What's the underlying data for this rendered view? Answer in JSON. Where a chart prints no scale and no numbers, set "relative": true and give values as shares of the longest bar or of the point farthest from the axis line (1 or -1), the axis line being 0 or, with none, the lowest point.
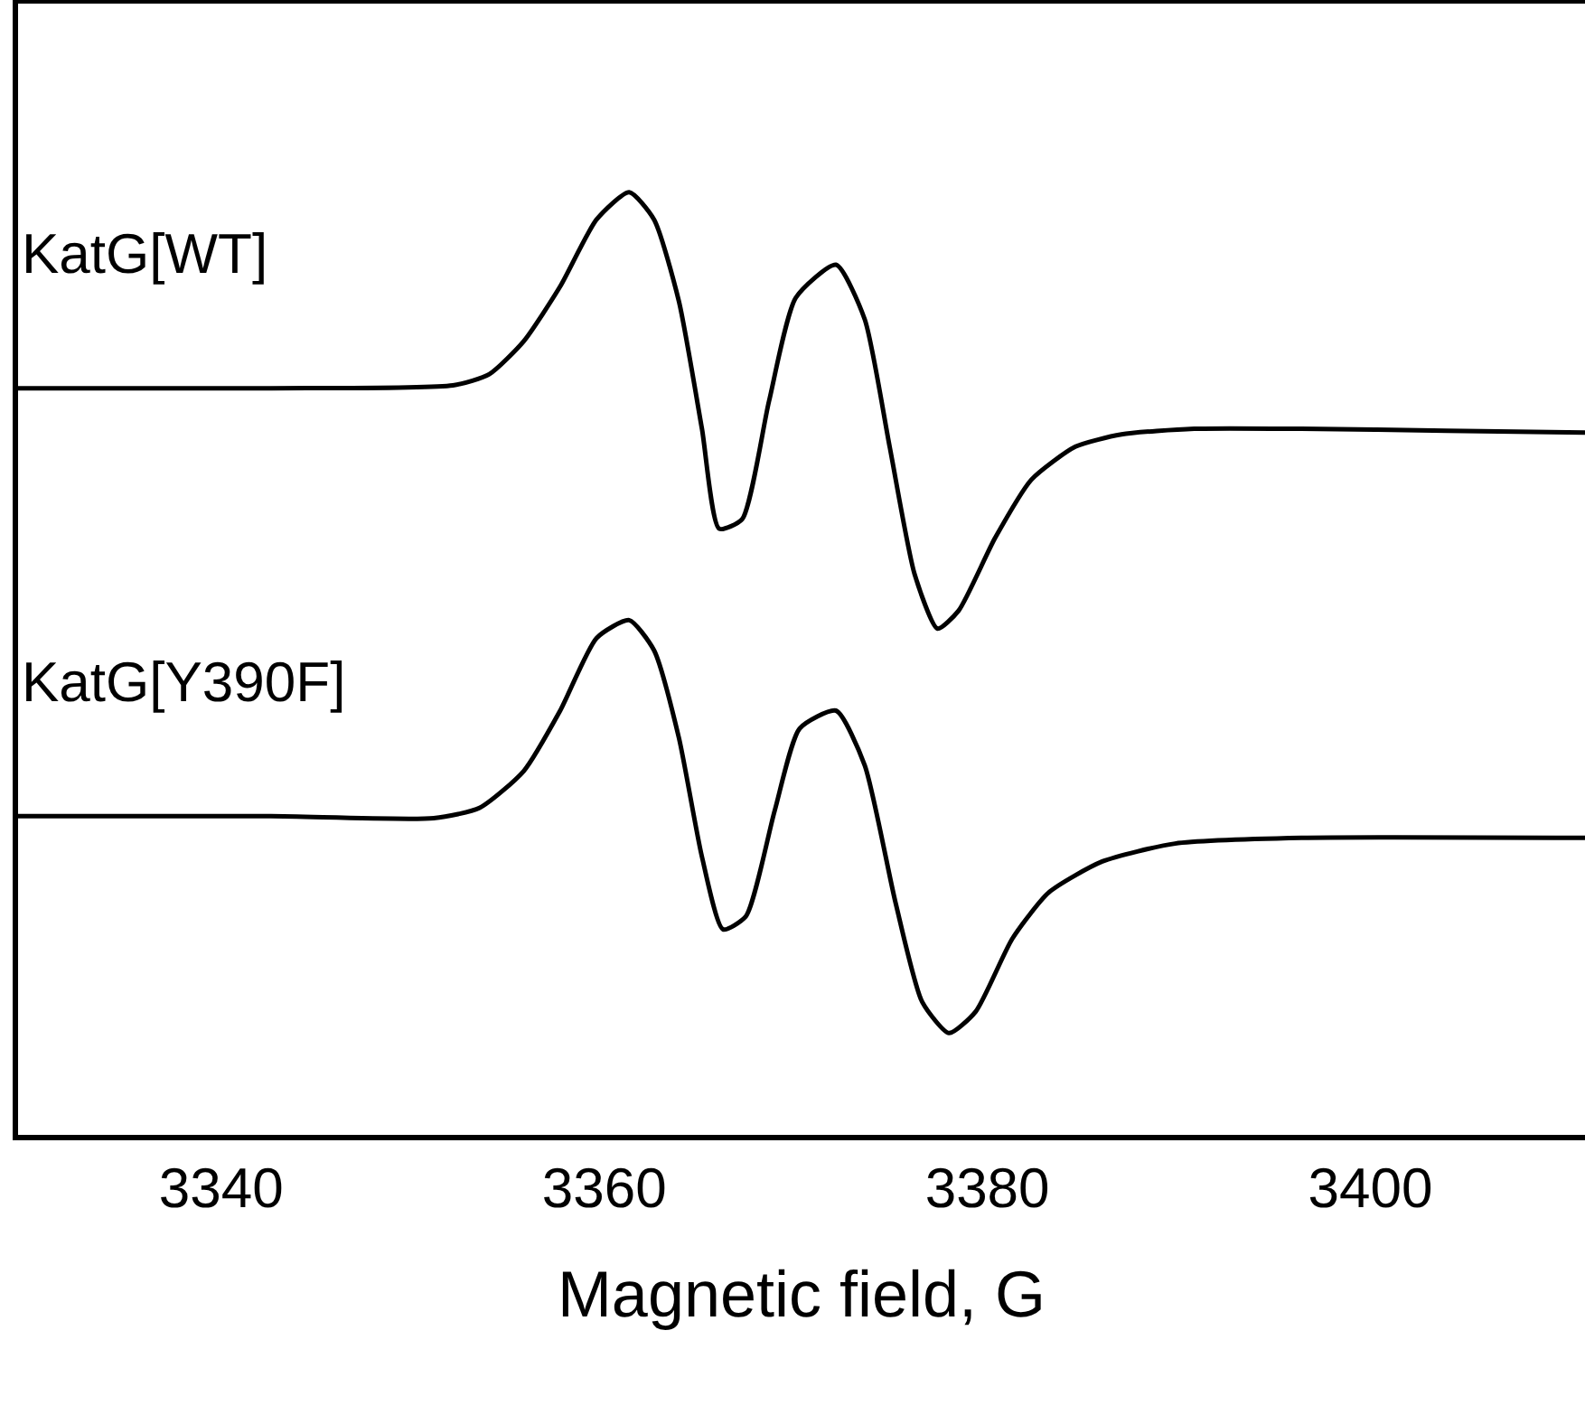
{
  "chart_data": {
    "type": "line",
    "xlabel": "Magnetic field, G",
    "relative": true,
    "xlim": [
      3329.4,
      3411.2
    ],
    "xticks": [
      3340,
      3360,
      3380,
      3400
    ],
    "grid": false,
    "legend": false,
    "marker": "none",
    "line_style": "solid",
    "series": [
      {
        "name": "KatG[WT]",
        "color": "#000000",
        "x": [
          3329.4,
          3342.6,
          3352.1,
          3354.0,
          3355.8,
          3357.7,
          3359.6,
          3361.3,
          3362.6,
          3363.9,
          3365.1,
          3366.0,
          3367.2,
          3368.6,
          3370.0,
          3372.1,
          3373.6,
          3374.9,
          3376.2,
          3377.4,
          3378.5,
          3380.4,
          3382.3,
          3384.6,
          3387.0,
          3390.8,
          3396.4,
          3404.0,
          3411.2
        ],
        "values": [
          0.792,
          0.792,
          0.795,
          0.807,
          0.842,
          0.9,
          0.971,
          1.0,
          0.971,
          0.884,
          0.749,
          0.643,
          0.653,
          0.778,
          0.888,
          0.923,
          0.865,
          0.73,
          0.595,
          0.537,
          0.556,
          0.633,
          0.695,
          0.73,
          0.743,
          0.749,
          0.749,
          0.747,
          0.745
        ]
      },
      {
        "name": "KatG[Y390F]",
        "color": "#000000",
        "x": [
          3329.4,
          3342.6,
          3351.1,
          3353.5,
          3355.8,
          3357.7,
          3359.6,
          3361.3,
          3362.6,
          3363.9,
          3365.1,
          3366.2,
          3367.4,
          3368.9,
          3370.2,
          3372.1,
          3373.6,
          3375.2,
          3376.6,
          3378.0,
          3379.4,
          3381.3,
          3383.2,
          3386.0,
          3389.8,
          3396.4,
          3411.2
        ],
        "values": [
          0.338,
          0.338,
          0.336,
          0.347,
          0.386,
          0.45,
          0.527,
          0.546,
          0.514,
          0.421,
          0.295,
          0.218,
          0.232,
          0.344,
          0.431,
          0.45,
          0.392,
          0.247,
          0.141,
          0.108,
          0.131,
          0.208,
          0.257,
          0.29,
          0.309,
          0.315,
          0.315
        ]
      }
    ]
  }
}
